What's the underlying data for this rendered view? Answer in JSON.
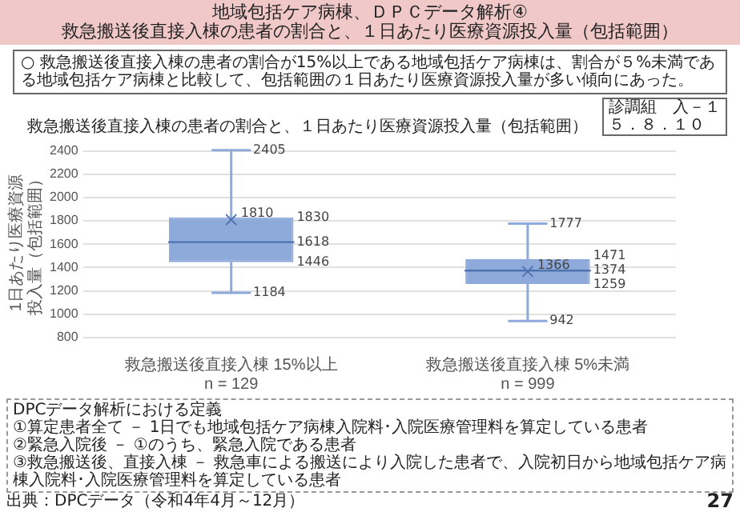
{
  "chart_data": {
    "type": "box",
    "title": "地域包括ケア病棟、ＤＰＣデータ解析④",
    "subtitle": "救急搬送後直接入棟の患者の割合と、１日あたり医療資源投入量（包括範囲）",
    "ylabel": "1日あたり医療資源投入量（包括範囲）",
    "categories": [
      "救急搬送後直接入棟 15%以上\nn = 129",
      "救急搬送後直接入棟 5%未満\nn = 999"
    ],
    "boxes": [
      {
        "low": 1184,
        "q1": 1446,
        "median": 1618,
        "q3": 1830,
        "high": 2405,
        "mean": 1810
      },
      {
        "low": 942,
        "q1": 1259,
        "median": 1374,
        "q3": 1471,
        "high": 1777,
        "mean": 1366
      }
    ],
    "color": "#8eaadb",
    "ylim": [
      800,
      2420
    ],
    "yticks": [
      800,
      1000,
      1200,
      1400,
      1600,
      1800,
      2000,
      2200,
      2400
    ],
    "grid": "y",
    "legend": false,
    "annotations": [
      "○ 救急搬送後直接入棟の患者の割合が15%以上である地域包括ケア病棟は、割合が５%未満である地域包括ケア病棟と比較して、包括範囲の１日あたり医療資源投入量が多い傾向にあった。",
      "診調組　入－１",
      "５．８．１０",
      "救急搬送後直接入棟の患者の割合と、１日あたり医療資源投入量（包括範囲）",
      "DPCデータ解析における定義",
      "①算定患者全て － 1日でも地域包括ケア病棟入院料･入院医療管理料を算定している患者",
      "②緊急入院後 － ①のうち、緊急入院である患者",
      "③救急搬送後、直接入棟 － 救急車による搬送により入院した患者で、入院初日から地域包括ケア病棟入院料･入院医療管理料を算定している患者",
      "出典：DPCデータ（令和4年4月～12月）",
      "27",
      "1830",
      "1618",
      "1446",
      "1471",
      "1374",
      "1259",
      {
        "text": "2405",
        "x": "救急搬送後直接入棟 15%以上\nn = 129",
        "y": 2405
      },
      {
        "text": "1184",
        "x": "救急搬送後直接入棟 15%以上\nn = 129",
        "y": 1184
      },
      {
        "text": "1810",
        "x": "救急搬送後直接入棟 15%以上\nn = 129",
        "y": 1810
      },
      {
        "text": "1777",
        "x": "救急搬送後直接入棟 5%未満\nn = 999",
        "y": 1777
      },
      {
        "text": "942",
        "x": "救急搬送後直接入棟 5%未満\nn = 999",
        "y": 942
      },
      {
        "text": "1366",
        "x": "救急搬送後直接入棟 5%未満\nn = 999",
        "y": 1366
      }
    ]
  }
}
